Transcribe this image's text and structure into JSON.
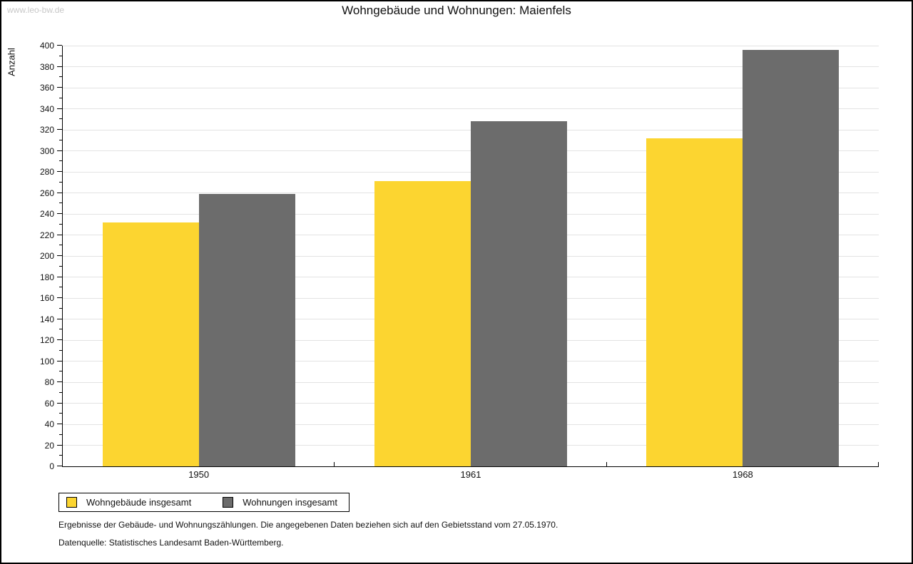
{
  "watermark": "www.leo-bw.de",
  "title": "Wohngebäude und Wohnungen: Maienfels",
  "chart_data": {
    "type": "bar",
    "categories": [
      "1950",
      "1961",
      "1968"
    ],
    "series": [
      {
        "name": "Wohngebäude insgesamt",
        "color": "#FCD530",
        "values": [
          232,
          271,
          312
        ]
      },
      {
        "name": "Wohnungen insgesamt",
        "color": "#6C6C6C",
        "values": [
          259,
          328,
          396
        ]
      }
    ],
    "title": "Wohngebäude und Wohnungen: Maienfels",
    "xlabel": "",
    "ylabel": "Anzahl",
    "ylim": [
      0,
      400
    ],
    "ytick_step": 20,
    "ytick_minor_step": 10,
    "grid": true,
    "legend_position": "bottom-left"
  },
  "footnotes": [
    "Ergebnisse der Gebäude- und Wohnungszählungen. Die angegebenen Daten beziehen sich auf den Gebietsstand vom 27.05.1970.",
    "Datenquelle: Statistisches Landesamt Baden-Württemberg."
  ]
}
